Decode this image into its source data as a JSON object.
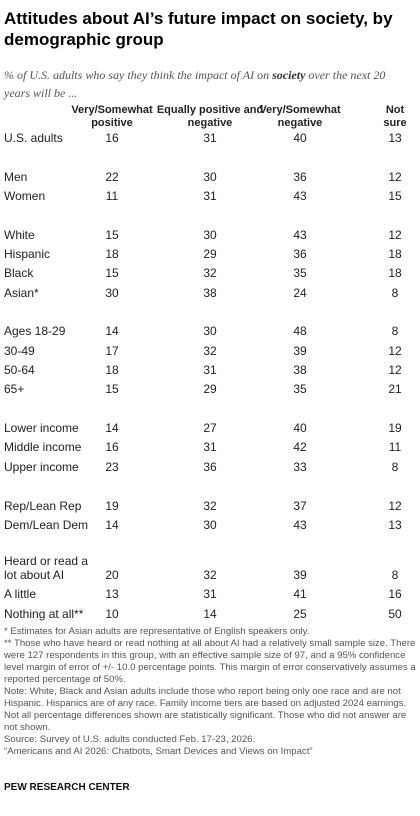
{
  "header": {
    "title": "Attitudes about AI’s future impact on society, by demographic group",
    "subtitle": [
      "% of U.S. adults who say they think the impact of AI on ",
      "society",
      " over the next 20 years will be ..."
    ]
  },
  "table": {
    "columns": [
      "Very/Somewhat positive",
      "Equally positive and negative",
      "Very/Somewhat negative",
      "Not sure"
    ],
    "groups": [
      {
        "rows": [
          {
            "label": "U.S. adults",
            "values": [
              16,
              31,
              40,
              13
            ]
          }
        ]
      },
      {
        "rows": [
          {
            "label": "Men",
            "values": [
              22,
              30,
              36,
              12
            ]
          },
          {
            "label": "Women",
            "values": [
              11,
              31,
              43,
              15
            ]
          }
        ]
      },
      {
        "rows": [
          {
            "label": "White",
            "values": [
              15,
              30,
              43,
              12
            ]
          },
          {
            "label": "Hispanic",
            "values": [
              18,
              29,
              36,
              18
            ]
          },
          {
            "label": "Black",
            "values": [
              15,
              32,
              35,
              18
            ]
          },
          {
            "label": "Asian*",
            "values": [
              30,
              38,
              24,
              8
            ]
          }
        ]
      },
      {
        "rows": [
          {
            "label": "Ages 18-29",
            "values": [
              14,
              30,
              48,
              8
            ]
          },
          {
            "label": "30-49",
            "values": [
              17,
              32,
              39,
              12
            ]
          },
          {
            "label": "50-64",
            "values": [
              18,
              31,
              38,
              12
            ]
          },
          {
            "label": "65+",
            "values": [
              15,
              29,
              35,
              21
            ]
          }
        ]
      },
      {
        "rows": [
          {
            "label": "Lower income",
            "values": [
              14,
              27,
              40,
              19
            ]
          },
          {
            "label": "Middle income",
            "values": [
              16,
              31,
              42,
              11
            ]
          },
          {
            "label": "Upper income",
            "values": [
              23,
              36,
              33,
              8
            ]
          }
        ]
      },
      {
        "rows": [
          {
            "label": "Rep/Lean Rep",
            "values": [
              19,
              32,
              37,
              12
            ]
          },
          {
            "label": "Dem/Lean Dem",
            "values": [
              14,
              30,
              43,
              13
            ]
          }
        ]
      },
      {
        "rows": [
          {
            "label": "Heard or read a lot about AI",
            "values": [
              20,
              32,
              39,
              8
            ]
          },
          {
            "label": "A little",
            "values": [
              13,
              31,
              41,
              16
            ]
          },
          {
            "label": "Nothing at all**",
            "values": [
              10,
              14,
              25,
              50
            ]
          }
        ]
      }
    ]
  },
  "notes": [
    "* Estimates for Asian adults are representative of English speakers only.",
    "** Those who have heard or read nothing at all about AI had a relatively small sample size. There were 127 respondents in this group, with an effective sample size of 97, and a 95% confidence level margin of error of +/- 10.0 percentage points. This margin of error conservatively assumes a reported percentage of 50%.",
    "Note: White, Black and Asian adults include those who report being only one race and are not Hispanic. Hispanics are of any race. Family income tiers are based on adjusted 2024 earnings. Not all percentage differences shown are statistically significant. Those who did not answer are not shown.",
    "Source: Survey of U.S. adults conducted Feb. 17-23, 2026.",
    "“Americans and AI 2026: Chatbots, Smart Devices and Views on Impact”"
  ],
  "footer": "PEW RESEARCH CENTER"
}
